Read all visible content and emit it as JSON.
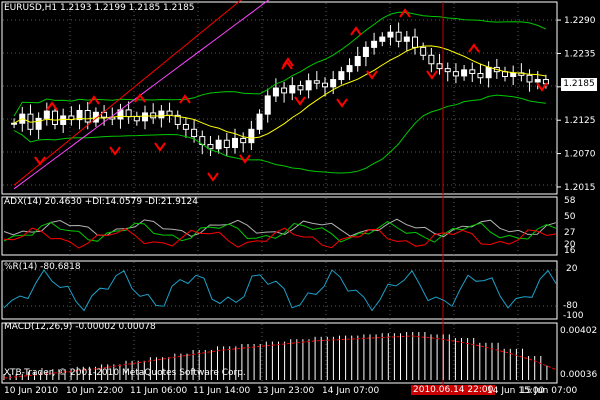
{
  "colors": {
    "background": "#000000",
    "border": "#ffffff",
    "grid": "#5a5a5a",
    "bull_candle": "#ffffff",
    "bear_candle": "#ffffff",
    "bear_body": "#000000",
    "bollinger": "#00c800",
    "ma_fast": "#ffff00",
    "ma_slow": "#ff0000",
    "ma_long": "#ff44ff",
    "fractal": "#ff0000",
    "adx": "#b0b0b0",
    "plus_di": "#00c800",
    "minus_di": "#ff0000",
    "wpr": "#1ea0c8",
    "macd_hist": "#ffffff",
    "macd_signal": "#ff0000",
    "price_marker_bg": "#ffffff",
    "price_marker_fg": "#000000",
    "vline": "#c80000"
  },
  "price_panel": {
    "header": "EURUSD,H1  1.2193 1.2199 1.2185 1.2185",
    "current_price": "1.2185",
    "y_ticks": [
      "1.2290",
      "1.2235",
      "1.2180",
      "1.2125",
      "1.2070",
      "1.2015"
    ],
    "ylim": [
      1.201,
      1.23
    ]
  },
  "adx_panel": {
    "header": "ADX(14) 20.4630 +DI:14.0579 -DI:21.9124",
    "y_ticks": [
      "58",
      "50",
      "27",
      "20",
      "16"
    ]
  },
  "wpr_panel": {
    "header": "%R(14) -80.6818",
    "y_ticks": [
      "20",
      "-80",
      "-100"
    ]
  },
  "macd_panel": {
    "header": "MACD(12,26,9) -0.00002 0.00078",
    "y_ticks": [
      "0.00402",
      "0.00036"
    ],
    "watermark": "XTB-Trader, © 2001-2010 MetaQuotes Software Corp."
  },
  "x_axis": {
    "labels": [
      "10 Jun 2010",
      "10 Jun 22:00",
      "11 Jun 06:00",
      "11 Jun 14:00",
      "13 Jun 23:00",
      "14 Jun 07:00",
      "14 Jun 15:00",
      "15 Jun 07:00"
    ],
    "highlight": "2010.06.14 22:00"
  },
  "chart_data": {
    "type": "candlestick",
    "symbol": "EURUSD",
    "timeframe": "H1",
    "ohlc_close_series": [
      1.212,
      1.2135,
      1.211,
      1.2128,
      1.214,
      1.2118,
      1.2132,
      1.2126,
      1.2141,
      1.2122,
      1.2138,
      1.213,
      1.2127,
      1.2142,
      1.2131,
      1.2124,
      1.2137,
      1.2129,
      1.214,
      1.2133,
      1.2118,
      1.211,
      1.2098,
      1.2085,
      1.2078,
      1.2092,
      1.208,
      1.2095,
      1.2088,
      1.211,
      1.2135,
      1.2165,
      1.2178,
      1.217,
      1.2182,
      1.2175,
      1.219,
      1.2186,
      1.218,
      1.2192,
      1.2205,
      1.2215,
      1.223,
      1.2245,
      1.2255,
      1.2262,
      1.227,
      1.2255,
      1.2262,
      1.2245,
      1.2232,
      1.2218,
      1.221,
      1.2205,
      1.2198,
      1.2208,
      1.2202,
      1.2195,
      1.2212,
      1.2205,
      1.2197,
      1.2203,
      1.2199,
      1.2188,
      1.2192,
      1.2185
    ],
    "macd_signal_approx": [
      0.0005,
      0.0007,
      0.0009,
      0.0011,
      0.0013,
      0.0016,
      0.0019,
      0.0022,
      0.0025,
      0.0028,
      0.003,
      0.0032,
      0.0034,
      0.0036,
      0.0037,
      0.0038,
      0.0039,
      0.004,
      0.0038,
      0.0035,
      0.0031,
      0.0026,
      0.002,
      0.0012
    ],
    "ylim": [
      1.201,
      1.23
    ]
  }
}
